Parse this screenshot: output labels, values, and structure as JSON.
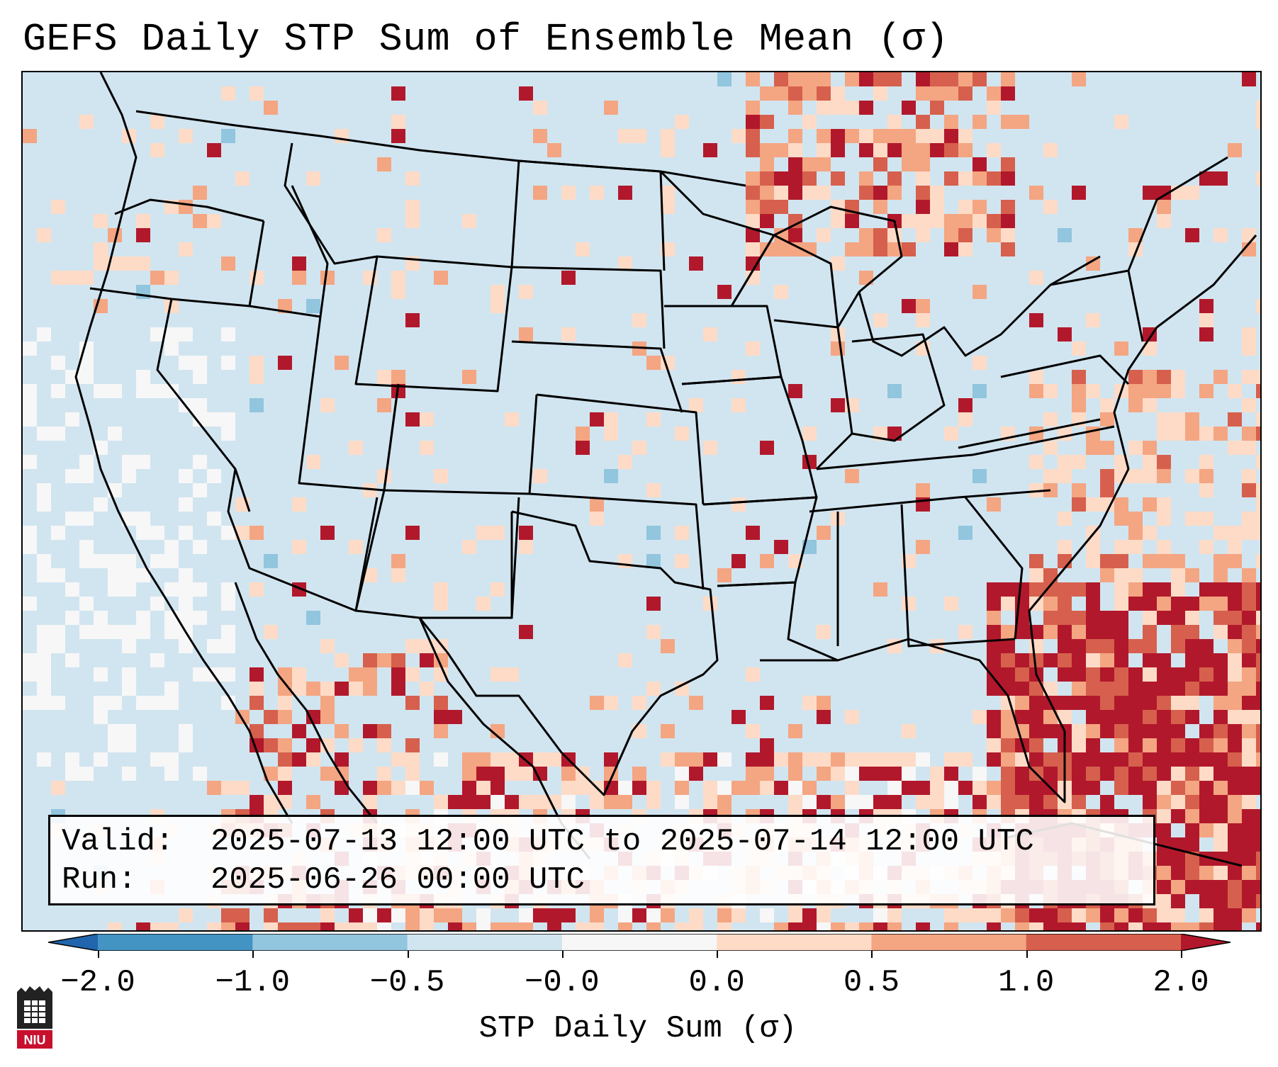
{
  "title": "GEFS Daily STP Sum of Ensemble Mean (σ)",
  "info": {
    "valid_label": "Valid:",
    "valid_value": "2025-07-13 12:00 UTC to 2025-07-14 12:00 UTC",
    "run_label": "Run:",
    "run_value": "2025-06-26 00:00 UTC"
  },
  "colorbar": {
    "label": "STP Daily Sum (σ)",
    "tick_labels": [
      "−2.0",
      "−1.0",
      "−0.5",
      "−0.0",
      "0.0",
      "0.5",
      "1.0",
      "2.0"
    ],
    "bins": [
      {
        "range": "<-2.0",
        "color": "#2166ac"
      },
      {
        "range": "-2.0 to -1.0",
        "color": "#4393c3"
      },
      {
        "range": "-1.0 to -0.5",
        "color": "#92c5de"
      },
      {
        "range": "-0.5 to -0.0",
        "color": "#d1e5f0"
      },
      {
        "range": "-0.0 to 0.0",
        "color": "#f7f7f7"
      },
      {
        "range": "0.0 to 0.5",
        "color": "#fddbc7"
      },
      {
        "range": "0.5 to 1.0",
        "color": "#f4a582"
      },
      {
        "range": "1.0 to 2.0",
        "color": "#d6604d"
      },
      {
        "range": ">2.0",
        "color": "#b2182b"
      }
    ]
  },
  "map": {
    "projection": "Lambert Conformal CONUS",
    "background_color": "#d1e5f0",
    "border_color": "#000000",
    "field_colors": {
      "neutral": "#f7f7f7",
      "low_positive": "#fddbc7",
      "mid_positive": "#f4a582",
      "high_positive": "#d6604d",
      "extreme": "#b2182b",
      "negative": "#92c5de"
    }
  },
  "logo": {
    "text": "NIU",
    "color": "#c8102e"
  }
}
